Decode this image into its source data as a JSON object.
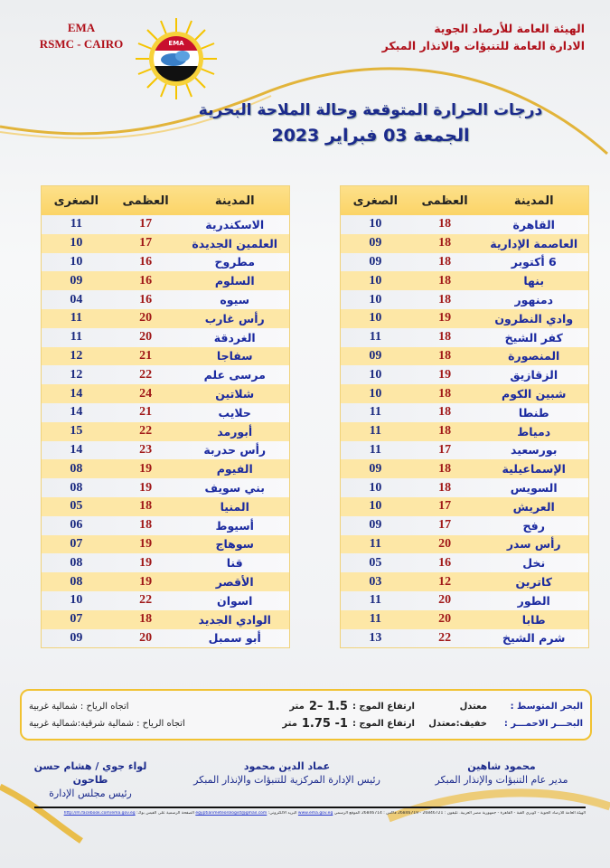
{
  "header": {
    "ema_line1": "EMA",
    "ema_line2": "RSMC - CAIRO",
    "org_line1": "الهيئة العامة للأرصاد الجوية",
    "org_line2": "الادارة العامة للتنبؤات والانذار المبكر",
    "logo_text": "EMA",
    "title": "درجات الحرارة المتوقعة وحالة الملاحة البحرية",
    "date": "الجمعة 03 فبراير 2023"
  },
  "colors": {
    "accent_gold": "#f1c232",
    "header_red": "#b0101a",
    "text_blue": "#1b2a8c",
    "max_red": "#a01818"
  },
  "columns": {
    "city": "المدينة",
    "max": "العظمى",
    "min": "الصغرى"
  },
  "table_right": [
    {
      "city": "القاهرة",
      "max": "18",
      "min": "10"
    },
    {
      "city": "العاصمة الإدارية",
      "max": "18",
      "min": "09"
    },
    {
      "city": "6 أكتوبر",
      "max": "18",
      "min": "09"
    },
    {
      "city": "بنها",
      "max": "18",
      "min": "10"
    },
    {
      "city": "دمنهور",
      "max": "18",
      "min": "10"
    },
    {
      "city": "وادي النطرون",
      "max": "19",
      "min": "10"
    },
    {
      "city": "كفر الشيخ",
      "max": "18",
      "min": "11"
    },
    {
      "city": "المنصورة",
      "max": "18",
      "min": "09"
    },
    {
      "city": "الزقازيق",
      "max": "19",
      "min": "10"
    },
    {
      "city": "شبين الكوم",
      "max": "18",
      "min": "10"
    },
    {
      "city": "طنطا",
      "max": "18",
      "min": "11"
    },
    {
      "city": "دمياط",
      "max": "18",
      "min": "11"
    },
    {
      "city": "بورسعيد",
      "max": "17",
      "min": "11"
    },
    {
      "city": "الإسماعيلية",
      "max": "18",
      "min": "09"
    },
    {
      "city": "السويس",
      "max": "18",
      "min": "10"
    },
    {
      "city": "العريش",
      "max": "17",
      "min": "10"
    },
    {
      "city": "رفح",
      "max": "17",
      "min": "09"
    },
    {
      "city": "رأس سدر",
      "max": "20",
      "min": "11"
    },
    {
      "city": "نخل",
      "max": "16",
      "min": "05"
    },
    {
      "city": "كاترين",
      "max": "12",
      "min": "03"
    },
    {
      "city": "الطور",
      "max": "20",
      "min": "11"
    },
    {
      "city": "طابا",
      "max": "20",
      "min": "11"
    },
    {
      "city": "شرم الشيخ",
      "max": "22",
      "min": "13"
    }
  ],
  "table_left": [
    {
      "city": "الاسكندرية",
      "max": "17",
      "min": "11"
    },
    {
      "city": "العلمين الجديدة",
      "max": "17",
      "min": "10"
    },
    {
      "city": "مطروح",
      "max": "16",
      "min": "10"
    },
    {
      "city": "السلوم",
      "max": "16",
      "min": "09"
    },
    {
      "city": "سيوه",
      "max": "16",
      "min": "04"
    },
    {
      "city": "رأس غارب",
      "max": "20",
      "min": "11"
    },
    {
      "city": "الغردقة",
      "max": "20",
      "min": "11"
    },
    {
      "city": "سفاجا",
      "max": "21",
      "min": "12"
    },
    {
      "city": "مرسى علم",
      "max": "22",
      "min": "12"
    },
    {
      "city": "شلاتين",
      "max": "24",
      "min": "14"
    },
    {
      "city": "حلايب",
      "max": "21",
      "min": "14"
    },
    {
      "city": "أبورمد",
      "max": "22",
      "min": "15"
    },
    {
      "city": "رأس حدربة",
      "max": "23",
      "min": "14"
    },
    {
      "city": "الفيوم",
      "max": "19",
      "min": "08"
    },
    {
      "city": "بني سويف",
      "max": "19",
      "min": "08"
    },
    {
      "city": "المنيا",
      "max": "18",
      "min": "05"
    },
    {
      "city": "أسيوط",
      "max": "18",
      "min": "06"
    },
    {
      "city": "سوهاج",
      "max": "19",
      "min": "07"
    },
    {
      "city": "قنا",
      "max": "19",
      "min": "08"
    },
    {
      "city": "الأقصر",
      "max": "19",
      "min": "08"
    },
    {
      "city": "اسوان",
      "max": "22",
      "min": "10"
    },
    {
      "city": "الوادي الجديد",
      "max": "18",
      "min": "07"
    },
    {
      "city": "أبو سمبل",
      "max": "20",
      "min": "09"
    }
  ],
  "sea": [
    {
      "name": "البحر المتوسط :",
      "state": "معتدل",
      "wave_label": "ارتفاع الموج :",
      "wave": "1.5 –2",
      "unit": "متر",
      "wind": "اتجاه الرياح : شمالية غربية"
    },
    {
      "name": "البحـــر الاحمـــر :",
      "state": "خفيف:معتدل",
      "wave_label": "ارتفاع الموج :",
      "wave": "1- 1.75",
      "unit": "متر",
      "wind": "اتجاه الرياح : شمالية شرقية:شمالية غربية"
    }
  ],
  "signatures": [
    {
      "name": "محمود شاهين",
      "title": "مدير عام التنبؤات والإنذار المبكر"
    },
    {
      "name": "عماد الدين محمود",
      "title": "رئيس الإدارة المركزية للتنبؤات والإنذار المبكر"
    },
    {
      "name": "لواء جوي / هشام حسن طاحون",
      "title": "رئيس مجلس الإدارة"
    }
  ],
  "footer": {
    "address": "الهيئة العامة للأرصاد الجوية - كوبري القبة - القاهرة - جمهورية مصر العربية. تليفون : 26846721 - 26846719 فاكس : 26846714 الموقع الرسمي",
    "website": "www.ema.gov.eg",
    "email_label": "البريد الالكتروني:",
    "email": "egyptianmeteorologist@gmail.com",
    "fb_label": "الصفحة الرسمية على الفيس بوك:",
    "facebook": "http://m.facebook.com/ema.gov.eg"
  }
}
